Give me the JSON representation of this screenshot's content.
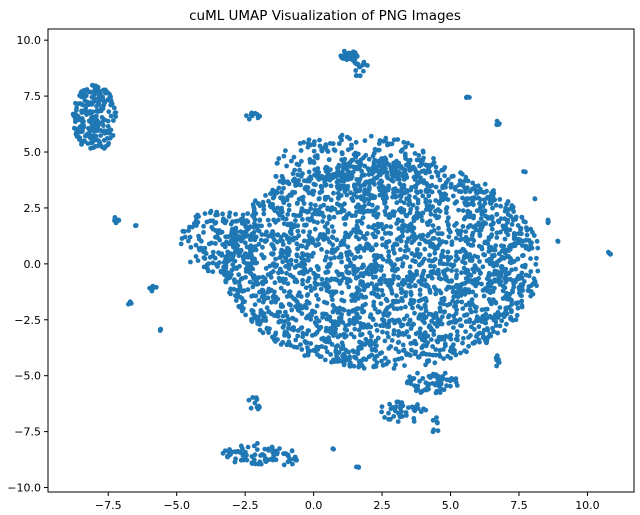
{
  "chart_data": {
    "type": "scatter",
    "title": "cuML UMAP Visualization of PNG Images",
    "xlabel": "",
    "ylabel": "",
    "xlim": [
      -9.7,
      11.7
    ],
    "ylim": [
      -10.2,
      10.5
    ],
    "x_ticks": [
      -7.5,
      -5.0,
      -2.5,
      0.0,
      2.5,
      5.0,
      7.5,
      10.0
    ],
    "y_ticks": [
      -10.0,
      -7.5,
      -5.0,
      -2.5,
      0.0,
      2.5,
      5.0,
      7.5,
      10.0
    ],
    "x_tick_labels": [
      "−7.5",
      "−5.0",
      "−2.5",
      "0.0",
      "2.5",
      "5.0",
      "7.5",
      "10.0"
    ],
    "y_tick_labels": [
      "−10.0",
      "−7.5",
      "−5.0",
      "−2.5",
      "0.0",
      "2.5",
      "5.0",
      "7.5",
      "10.0"
    ],
    "grid": false,
    "marker_color": "#1f77b4",
    "series": [
      {
        "clusters": [
          {
            "cx": 2.5,
            "cy": 0.0,
            "rx": 5.8,
            "ry": 4.7,
            "n": 2600
          },
          {
            "cx": 1.5,
            "cy": 4.3,
            "rx": 3.0,
            "ry": 1.5,
            "n": 260
          },
          {
            "cx": -3.5,
            "cy": 1.0,
            "rx": 1.4,
            "ry": 1.4,
            "n": 160
          },
          {
            "cx": -8.0,
            "cy": 6.5,
            "rx": 0.8,
            "ry": 1.5,
            "n": 200
          },
          {
            "cx": 1.3,
            "cy": 9.3,
            "rx": 0.35,
            "ry": 0.25,
            "n": 30
          },
          {
            "cx": 1.7,
            "cy": 8.7,
            "rx": 0.3,
            "ry": 0.4,
            "n": 14
          },
          {
            "cx": -2.2,
            "cy": 6.6,
            "rx": 0.3,
            "ry": 0.2,
            "n": 10
          },
          {
            "cx": -7.2,
            "cy": 1.9,
            "rx": 0.15,
            "ry": 0.2,
            "n": 8
          },
          {
            "cx": -6.5,
            "cy": 1.7,
            "rx": 0.05,
            "ry": 0.05,
            "n": 2
          },
          {
            "cx": -5.8,
            "cy": -1.1,
            "rx": 0.2,
            "ry": 0.2,
            "n": 6
          },
          {
            "cx": -6.7,
            "cy": -1.75,
            "rx": 0.1,
            "ry": 0.08,
            "n": 4
          },
          {
            "cx": -5.6,
            "cy": -3.0,
            "rx": 0.1,
            "ry": 0.08,
            "n": 3
          },
          {
            "cx": 5.6,
            "cy": 7.4,
            "rx": 0.12,
            "ry": 0.1,
            "n": 5
          },
          {
            "cx": 6.7,
            "cy": 6.3,
            "rx": 0.1,
            "ry": 0.1,
            "n": 4
          },
          {
            "cx": 8.1,
            "cy": 2.9,
            "rx": 0.05,
            "ry": 0.05,
            "n": 2
          },
          {
            "cx": 8.6,
            "cy": 1.9,
            "rx": 0.12,
            "ry": 0.1,
            "n": 3
          },
          {
            "cx": 8.9,
            "cy": 1.0,
            "rx": 0.05,
            "ry": 0.05,
            "n": 2
          },
          {
            "cx": 10.8,
            "cy": 0.5,
            "rx": 0.1,
            "ry": 0.1,
            "n": 4
          },
          {
            "cx": 7.7,
            "cy": 4.1,
            "rx": 0.05,
            "ry": 0.05,
            "n": 2
          },
          {
            "cx": 6.9,
            "cy": -0.3,
            "rx": 0.2,
            "ry": 0.4,
            "n": 8
          },
          {
            "cx": 6.7,
            "cy": -4.3,
            "rx": 0.15,
            "ry": 0.3,
            "n": 8
          },
          {
            "cx": 4.3,
            "cy": -5.3,
            "rx": 1.0,
            "ry": 0.5,
            "n": 65
          },
          {
            "cx": 3.3,
            "cy": -6.6,
            "rx": 0.9,
            "ry": 0.5,
            "n": 40
          },
          {
            "cx": 4.5,
            "cy": -7.3,
            "rx": 0.2,
            "ry": 0.5,
            "n": 7
          },
          {
            "cx": 1.2,
            "cy": -4.4,
            "rx": 0.6,
            "ry": 0.2,
            "n": 14
          },
          {
            "cx": -2.3,
            "cy": -8.5,
            "rx": 1.1,
            "ry": 0.5,
            "n": 60
          },
          {
            "cx": -1.0,
            "cy": -8.6,
            "rx": 0.5,
            "ry": 0.4,
            "n": 20
          },
          {
            "cx": -2.1,
            "cy": -6.2,
            "rx": 0.3,
            "ry": 0.4,
            "n": 10
          },
          {
            "cx": 1.6,
            "cy": -9.1,
            "rx": 0.1,
            "ry": 0.08,
            "n": 3
          },
          {
            "cx": 0.7,
            "cy": -8.3,
            "rx": 0.05,
            "ry": 0.05,
            "n": 2
          }
        ]
      }
    ]
  }
}
